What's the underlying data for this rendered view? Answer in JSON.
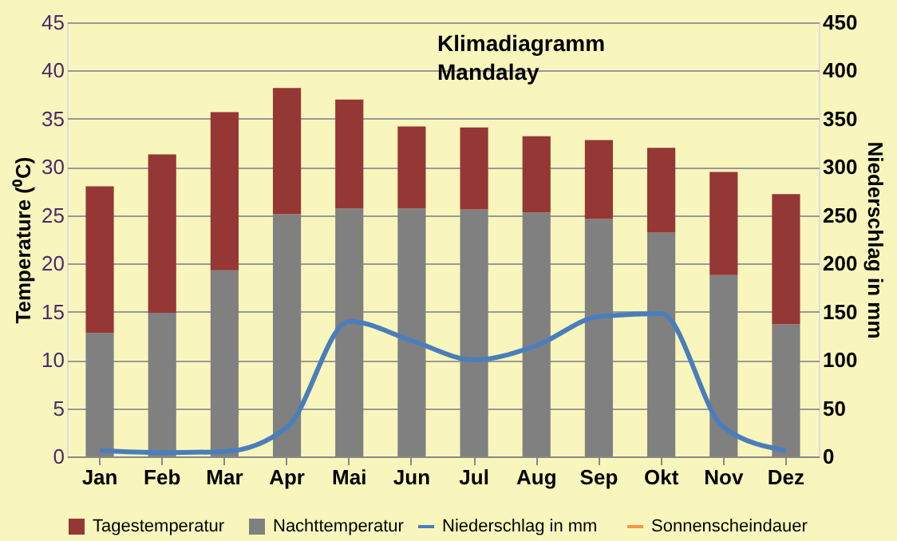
{
  "chart_data": {
    "type": "bar",
    "title": "Klimadiagramm",
    "subtitle": "Mandalay",
    "ylabel": "Temperature (⁰C)",
    "y2label": "Niederschlag in mm",
    "categories": [
      "Jan",
      "Feb",
      "Mar",
      "Apr",
      "Mai",
      "Jun",
      "Jul",
      "Aug",
      "Sep",
      "Okt",
      "Nov",
      "Dez"
    ],
    "stacked": true,
    "series": [
      {
        "name": "Nachttemperatur",
        "color": "#808080",
        "values": [
          12.8,
          14.9,
          19.3,
          25.1,
          25.7,
          25.7,
          25.6,
          25.3,
          24.6,
          23.2,
          18.8,
          13.7
        ]
      },
      {
        "name": "Tagestemperatur",
        "color": "#953735",
        "values": [
          15.2,
          16.4,
          16.4,
          13.1,
          11.3,
          8.5,
          8.5,
          7.9,
          8.2,
          8.8,
          10.7,
          13.5
        ]
      },
      {
        "name": "Niederschlag in mm",
        "type": "line",
        "axis": "y2",
        "color": "#4a7ebb",
        "values": [
          6,
          4,
          5,
          30,
          140,
          120,
          100,
          115,
          145,
          148,
          30,
          6
        ]
      },
      {
        "name": "Sonnenscheindauer",
        "type": "line",
        "axis": "y2",
        "color": "#f79646",
        "values": [
          null,
          null,
          null,
          null,
          null,
          null,
          null,
          null,
          null,
          null,
          null,
          null
        ]
      }
    ],
    "ylim": [
      0,
      45
    ],
    "yticks": [
      0,
      5,
      10,
      15,
      20,
      25,
      30,
      35,
      40,
      45
    ],
    "y2lim": [
      0,
      450
    ],
    "y2ticks": [
      0,
      50,
      100,
      150,
      200,
      250,
      300,
      350,
      400,
      450
    ],
    "grid": "y",
    "legend": "bottom"
  }
}
